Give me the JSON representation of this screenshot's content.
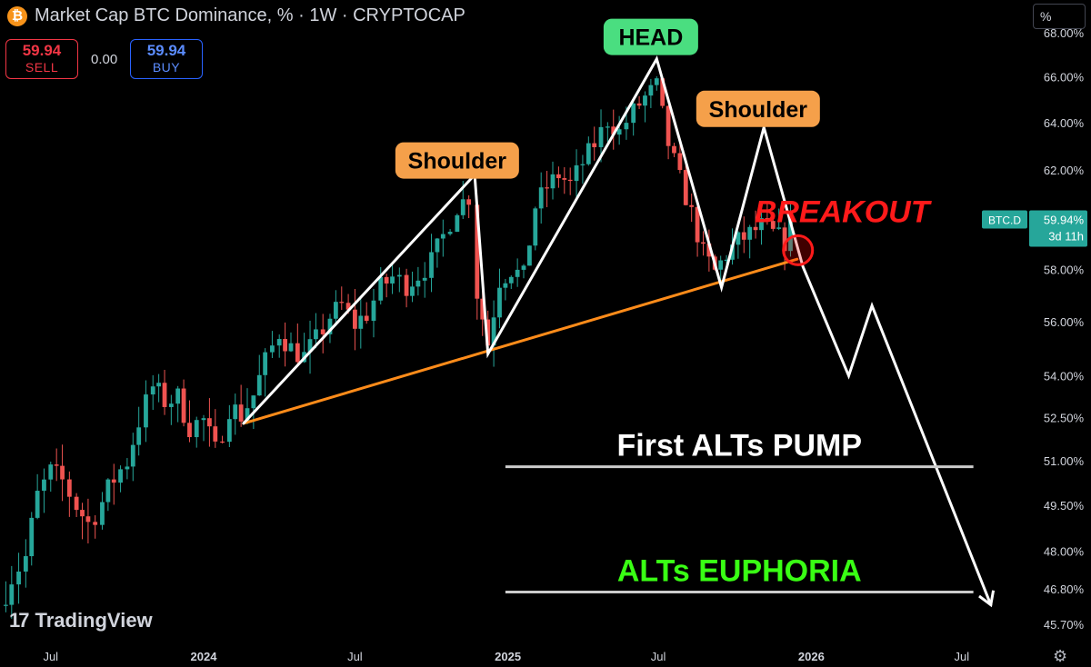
{
  "header": {
    "title": "Market Cap BTC Dominance, % · 1W · CRYPTOCAP",
    "logo_letter": "₿",
    "sell_price": "59.94",
    "sell_label": "SELL",
    "spread": "0.00",
    "buy_price": "59.94",
    "buy_label": "BUY",
    "unit_button": "%"
  },
  "branding": {
    "logo_text": "TradingView",
    "logo_mark": "17"
  },
  "colors": {
    "background": "#000000",
    "up": "#26a69a",
    "down": "#ef5350",
    "orange": "#ff8c1a",
    "label_orange": "#f5a04a",
    "label_green": "#4ade80",
    "breakout_red": "#ff1a1a",
    "euphoria_green": "#39ff14",
    "price_tag": "#26a69a"
  },
  "chart_data": {
    "type": "candlestick",
    "symbol": "BTC.D",
    "interval": "1W",
    "y_scale": "log",
    "yrange": [
      45.2,
      69.5
    ],
    "y_ticks": [
      "68.00%",
      "66.00%",
      "64.00%",
      "62.00%",
      "58.00%",
      "56.00%",
      "54.00%",
      "52.50%",
      "51.00%",
      "49.50%",
      "48.00%",
      "46.80%",
      "45.70%"
    ],
    "x_range": [
      "2023-05-01",
      "2026-09-07"
    ],
    "x_ticks": [
      {
        "label": "Jul",
        "date": "2023-07-01"
      },
      {
        "label": "2024",
        "date": "2024-01-01"
      },
      {
        "label": "Jul",
        "date": "2024-07-01"
      },
      {
        "label": "2025",
        "date": "2025-01-01"
      },
      {
        "label": "Jul",
        "date": "2025-07-01"
      },
      {
        "label": "2026",
        "date": "2026-01-01"
      },
      {
        "label": "Jul",
        "date": "2026-07-01"
      }
    ],
    "last_price": {
      "symbol": "BTC.D",
      "value": "59.94%",
      "countdown": "3d 11h"
    },
    "weekly_close": [
      {
        "date": "2023-05-01",
        "close": 46.3
      },
      {
        "date": "2023-05-15",
        "close": 47.2
      },
      {
        "date": "2023-06-01",
        "close": 47.8
      },
      {
        "date": "2023-06-15",
        "close": 49.8
      },
      {
        "date": "2023-07-01",
        "close": 50.6
      },
      {
        "date": "2023-07-15",
        "close": 50.3
      },
      {
        "date": "2023-08-01",
        "close": 49.5
      },
      {
        "date": "2023-08-15",
        "close": 48.9
      },
      {
        "date": "2023-09-01",
        "close": 49.6
      },
      {
        "date": "2023-09-15",
        "close": 50.4
      },
      {
        "date": "2023-10-01",
        "close": 51.0
      },
      {
        "date": "2023-10-15",
        "close": 52.4
      },
      {
        "date": "2023-11-01",
        "close": 53.6
      },
      {
        "date": "2023-11-15",
        "close": 53.1
      },
      {
        "date": "2023-12-01",
        "close": 53.2
      },
      {
        "date": "2023-12-15",
        "close": 52.2
      },
      {
        "date": "2024-01-01",
        "close": 52.4
      },
      {
        "date": "2024-01-15",
        "close": 51.3
      },
      {
        "date": "2024-02-01",
        "close": 52.9
      },
      {
        "date": "2024-02-15",
        "close": 52.6
      },
      {
        "date": "2024-03-01",
        "close": 53.3
      },
      {
        "date": "2024-03-15",
        "close": 54.5
      },
      {
        "date": "2024-04-01",
        "close": 55.6
      },
      {
        "date": "2024-04-15",
        "close": 55.0
      },
      {
        "date": "2024-05-01",
        "close": 54.7
      },
      {
        "date": "2024-05-15",
        "close": 55.3
      },
      {
        "date": "2024-06-01",
        "close": 56.2
      },
      {
        "date": "2024-06-15",
        "close": 56.6
      },
      {
        "date": "2024-07-01",
        "close": 55.9
      },
      {
        "date": "2024-07-15",
        "close": 56.3
      },
      {
        "date": "2024-08-01",
        "close": 57.3
      },
      {
        "date": "2024-08-15",
        "close": 57.7
      },
      {
        "date": "2024-09-01",
        "close": 57.4
      },
      {
        "date": "2024-09-15",
        "close": 57.8
      },
      {
        "date": "2024-10-01",
        "close": 58.3
      },
      {
        "date": "2024-10-15",
        "close": 59.3
      },
      {
        "date": "2024-11-01",
        "close": 60.5
      },
      {
        "date": "2024-11-15",
        "close": 60.9
      },
      {
        "date": "2024-11-25",
        "close": 57.1
      },
      {
        "date": "2024-12-08",
        "close": 55.2
      },
      {
        "date": "2024-12-22",
        "close": 57.6
      },
      {
        "date": "2025-01-05",
        "close": 58.0
      },
      {
        "date": "2025-01-20",
        "close": 57.7
      },
      {
        "date": "2025-02-03",
        "close": 60.5
      },
      {
        "date": "2025-02-17",
        "close": 61.3
      },
      {
        "date": "2025-03-03",
        "close": 61.8
      },
      {
        "date": "2025-03-17",
        "close": 61.4
      },
      {
        "date": "2025-04-01",
        "close": 62.3
      },
      {
        "date": "2025-04-15",
        "close": 63.1
      },
      {
        "date": "2025-05-01",
        "close": 64.1
      },
      {
        "date": "2025-05-15",
        "close": 63.6
      },
      {
        "date": "2025-06-01",
        "close": 64.5
      },
      {
        "date": "2025-06-15",
        "close": 65.1
      },
      {
        "date": "2025-06-29",
        "close": 65.6
      },
      {
        "date": "2025-07-13",
        "close": 63.1
      },
      {
        "date": "2025-07-27",
        "close": 61.6
      },
      {
        "date": "2025-08-10",
        "close": 60.2
      },
      {
        "date": "2025-08-24",
        "close": 58.6
      },
      {
        "date": "2025-09-07",
        "close": 57.9
      },
      {
        "date": "2025-09-21",
        "close": 58.6
      },
      {
        "date": "2025-10-05",
        "close": 59.1
      },
      {
        "date": "2025-10-19",
        "close": 59.4
      },
      {
        "date": "2025-11-02",
        "close": 59.7
      },
      {
        "date": "2025-11-16",
        "close": 59.4
      },
      {
        "date": "2025-11-30",
        "close": 59.1
      },
      {
        "date": "2025-12-07",
        "close": 59.94
      }
    ],
    "pattern": {
      "path": [
        {
          "date": "2024-02-18",
          "value": 52.3
        },
        {
          "date": "2024-11-22",
          "value": 61.8
        },
        {
          "date": "2024-12-08",
          "value": 54.8
        },
        {
          "date": "2025-06-29",
          "value": 66.8
        },
        {
          "date": "2025-09-15",
          "value": 57.3
        },
        {
          "date": "2025-11-05",
          "value": 63.8
        },
        {
          "date": "2025-12-22",
          "value": 58.1
        },
        {
          "date": "2026-02-15",
          "value": 54.0
        },
        {
          "date": "2026-03-15",
          "value": 56.6
        },
        {
          "date": "2026-08-05",
          "value": 46.3
        }
      ],
      "neckline": [
        {
          "date": "2024-02-18",
          "value": 52.3
        },
        {
          "date": "2025-12-15",
          "value": 58.4
        }
      ],
      "breakout_point": {
        "date": "2025-12-16",
        "value": 58.75
      }
    },
    "levels": [
      {
        "label": "First ALTs PUMP",
        "value": 50.8,
        "from": "2024-12-29",
        "to": "2026-07-15"
      },
      {
        "label": "ALTs EUPHORIA",
        "value": 46.7,
        "from": "2024-12-29",
        "to": "2026-07-15"
      }
    ],
    "annotations": [
      {
        "text": "Shoulder",
        "date": "2024-11-01",
        "value": 62.4
      },
      {
        "text": "HEAD",
        "date": "2025-06-22",
        "value": 67.8
      },
      {
        "text": "Shoulder",
        "date": "2025-10-29",
        "value": 64.6
      },
      {
        "text": "BREAKOUT",
        "date": "2026-02-07",
        "value": 60.3
      }
    ]
  }
}
